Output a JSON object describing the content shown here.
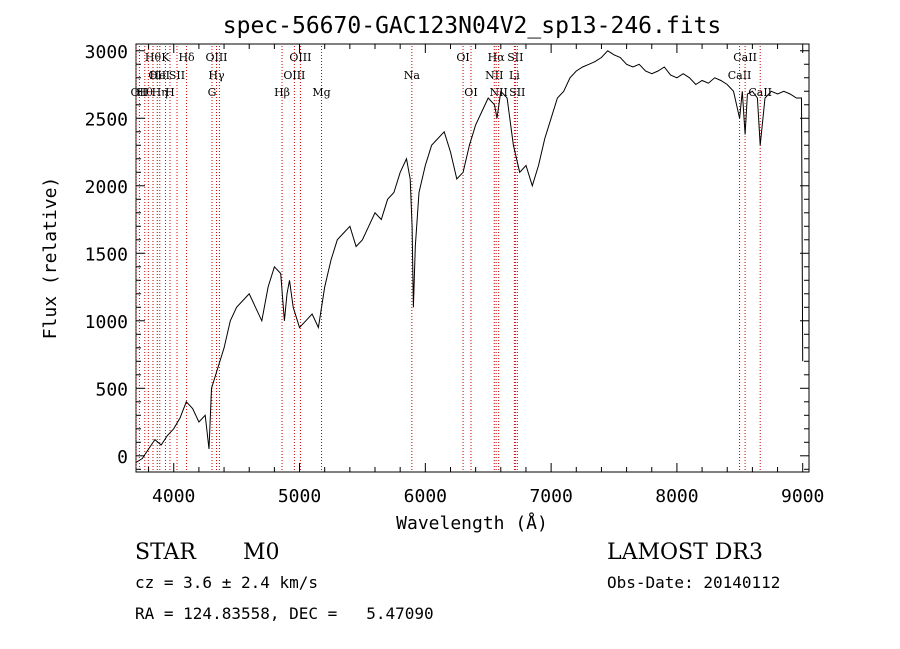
{
  "chart_data": {
    "type": "line",
    "title": "spec-56670-GAC123N04V2_sp13-246.fits",
    "xlabel": "Wavelength (Å)",
    "ylabel": "Flux (relative)",
    "xlim": [
      3700,
      9050
    ],
    "ylim": [
      -120,
      3050
    ],
    "x_ticks": [
      4000,
      5000,
      6000,
      7000,
      8000,
      9000
    ],
    "y_ticks": [
      0,
      500,
      1000,
      1500,
      2000,
      2500,
      3000
    ],
    "grid": false,
    "line_color": "#000000",
    "marker_color": "#cc0000",
    "series": [
      {
        "x": [
          3700,
          3750,
          3800,
          3850,
          3900,
          3950,
          4000,
          4050,
          4100,
          4150,
          4200,
          4250,
          4280,
          4300,
          4350,
          4400,
          4450,
          4500,
          4550,
          4600,
          4650,
          4700,
          4750,
          4800,
          4850,
          4880,
          4900,
          4920,
          4950,
          5000,
          5050,
          5100,
          5150,
          5200,
          5250,
          5300,
          5350,
          5400,
          5450,
          5500,
          5550,
          5600,
          5650,
          5700,
          5750,
          5800,
          5850,
          5880,
          5895,
          5905,
          5920,
          5950,
          6000,
          6050,
          6100,
          6150,
          6200,
          6250,
          6300,
          6350,
          6400,
          6450,
          6500,
          6550,
          6570,
          6600,
          6650,
          6700,
          6750,
          6800,
          6850,
          6900,
          6950,
          7000,
          7050,
          7100,
          7150,
          7200,
          7250,
          7300,
          7350,
          7400,
          7450,
          7500,
          7550,
          7600,
          7650,
          7700,
          7750,
          7800,
          7850,
          7900,
          7950,
          8000,
          8050,
          8100,
          8150,
          8200,
          8250,
          8300,
          8350,
          8400,
          8450,
          8498,
          8520,
          8542,
          8560,
          8600,
          8640,
          8662,
          8700,
          8750,
          8800,
          8850,
          8900,
          8950,
          8990,
          9000
        ],
        "y": [
          -50,
          -20,
          50,
          120,
          80,
          150,
          200,
          280,
          400,
          350,
          250,
          300,
          50,
          500,
          650,
          800,
          1000,
          1100,
          1150,
          1200,
          1100,
          1000,
          1250,
          1400,
          1350,
          1000,
          1200,
          1300,
          1100,
          950,
          1000,
          1050,
          950,
          1250,
          1450,
          1600,
          1650,
          1700,
          1550,
          1600,
          1700,
          1800,
          1750,
          1900,
          1950,
          2100,
          2200,
          2050,
          1700,
          1100,
          1550,
          1950,
          2150,
          2300,
          2350,
          2400,
          2250,
          2050,
          2100,
          2300,
          2450,
          2550,
          2650,
          2600,
          2500,
          2700,
          2650,
          2300,
          2100,
          2150,
          2000,
          2150,
          2350,
          2500,
          2650,
          2700,
          2800,
          2850,
          2880,
          2900,
          2920,
          2950,
          3000,
          2970,
          2950,
          2900,
          2880,
          2900,
          2850,
          2830,
          2850,
          2880,
          2820,
          2800,
          2830,
          2800,
          2750,
          2780,
          2760,
          2800,
          2780,
          2750,
          2700,
          2500,
          2700,
          2380,
          2680,
          2700,
          2650,
          2300,
          2650,
          2700,
          2680,
          2700,
          2680,
          2650,
          2650,
          700
        ]
      }
    ],
    "lines": [
      {
        "x": 3700,
        "labels": [
          "",
          "",
          ""
        ]
      },
      {
        "x": 3727,
        "labels": [
          "",
          "",
          "OII"
        ]
      },
      {
        "x": 3770,
        "labels": [
          "",
          "",
          "Hθ"
        ]
      },
      {
        "x": 3798,
        "labels": [
          "",
          "",
          ""
        ]
      },
      {
        "x": 3835,
        "labels": [
          "Hθ",
          "",
          ""
        ]
      },
      {
        "x": 3869,
        "labels": [
          "",
          "OII",
          ""
        ]
      },
      {
        "x": 3889,
        "labels": [
          "",
          "HeI",
          "Hη"
        ]
      },
      {
        "x": 3934,
        "labels": [
          "K",
          "",
          ""
        ]
      },
      {
        "x": 3970,
        "labels": [
          "",
          "",
          "H"
        ]
      },
      {
        "x": 4026,
        "labels": [
          "",
          "SII",
          ""
        ]
      },
      {
        "x": 4102,
        "labels": [
          "Hδ",
          "",
          ""
        ]
      },
      {
        "x": 4304,
        "labels": [
          "",
          "",
          "G"
        ]
      },
      {
        "x": 4340,
        "labels": [
          "OIII",
          "Hγ",
          ""
        ]
      },
      {
        "x": 4363,
        "labels": [
          "",
          "",
          ""
        ]
      },
      {
        "x": 4861,
        "labels": [
          "",
          "",
          "Hβ"
        ]
      },
      {
        "x": 4959,
        "labels": [
          "",
          "OIII",
          ""
        ]
      },
      {
        "x": 5007,
        "labels": [
          "OIII",
          "",
          ""
        ]
      },
      {
        "x": 5175,
        "labels": [
          "",
          "",
          "Mg"
        ]
      },
      {
        "x": 5893,
        "labels": [
          "",
          "Na",
          ""
        ]
      },
      {
        "x": 6300,
        "labels": [
          "OI",
          "",
          ""
        ]
      },
      {
        "x": 6363,
        "labels": [
          "",
          "",
          "OI"
        ]
      },
      {
        "x": 6548,
        "labels": [
          "",
          "NII",
          ""
        ]
      },
      {
        "x": 6563,
        "labels": [
          "Hα",
          "",
          ""
        ]
      },
      {
        "x": 6583,
        "labels": [
          "",
          "",
          "NII"
        ]
      },
      {
        "x": 6708,
        "labels": [
          "",
          "Li",
          ""
        ]
      },
      {
        "x": 6716,
        "labels": [
          "SII",
          "",
          ""
        ]
      },
      {
        "x": 6731,
        "labels": [
          "",
          "",
          "SII"
        ]
      },
      {
        "x": 8498,
        "labels": [
          "",
          "CaII",
          ""
        ]
      },
      {
        "x": 8542,
        "labels": [
          "CaII",
          "",
          ""
        ]
      },
      {
        "x": 8662,
        "labels": [
          "",
          "",
          "CaII"
        ]
      }
    ]
  },
  "info": {
    "object_class": "STAR",
    "subclass": "M0",
    "survey": "LAMOST DR3",
    "redshift_text": "cz = 3.6 ± 2.4 km/s",
    "obs_date_text": "Obs-Date: 20140112",
    "coords_text": "RA = 124.83558, DEC =   5.47090"
  }
}
